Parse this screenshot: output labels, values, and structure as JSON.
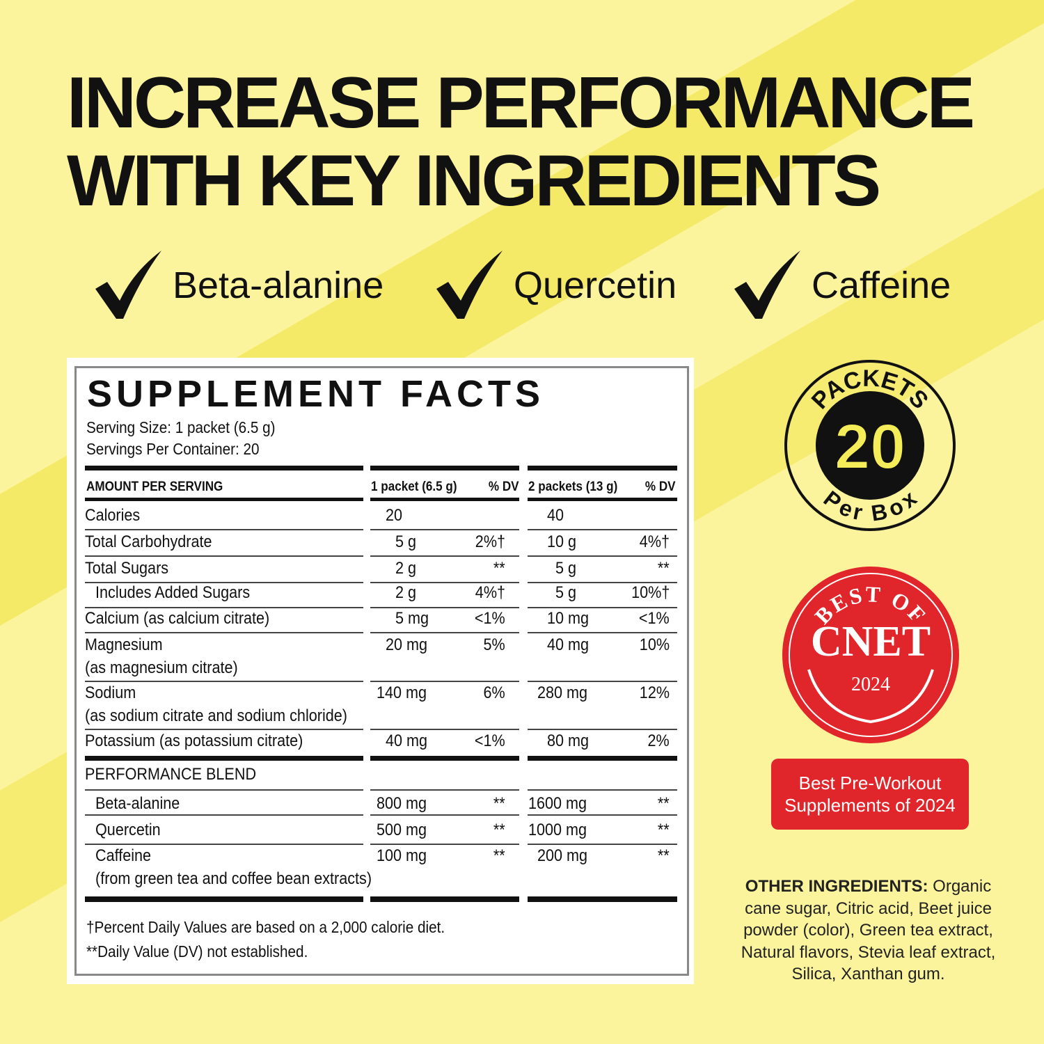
{
  "headline": {
    "line1": "INCREASE PERFORMANCE",
    "line2": "WITH KEY INGREDIENTS"
  },
  "highlights": [
    {
      "icon": "checkmark-icon",
      "label": "Beta-alanine"
    },
    {
      "icon": "checkmark-icon",
      "label": "Quercetin"
    },
    {
      "icon": "checkmark-icon",
      "label": "Caffeine"
    }
  ],
  "facts": {
    "title": "SUPPLEMENT FACTS",
    "serving_size": "Serving Size: 1 packet (6.5 g)",
    "servings_per_container": "Servings Per Container: 20",
    "headers": [
      "AMOUNT PER SERVING",
      "1 packet (6.5 g)",
      "% DV",
      "2 packets (13 g)",
      "% DV"
    ],
    "rows": [
      {
        "name": "Calories",
        "a1": "20",
        "d1": "",
        "a2": "40",
        "d2": ""
      },
      {
        "name": "Total Carbohydrate",
        "a1": "5 g",
        "d1": "2%†",
        "a2": "10 g",
        "d2": "4%†"
      },
      {
        "name": "Total Sugars",
        "a1": "2 g",
        "d1": "**",
        "a2": "5 g",
        "d2": "**"
      },
      {
        "name": "Includes Added Sugars",
        "a1": "2 g",
        "d1": "4%†",
        "a2": "5 g",
        "d2": "10%†"
      },
      {
        "name": "Calcium (as calcium citrate)",
        "a1": "5 mg",
        "d1": "<1%",
        "a2": "10 mg",
        "d2": "<1%"
      },
      {
        "name": "Magnesium",
        "note": "(as magnesium citrate)",
        "a1": "20 mg",
        "d1": "5%",
        "a2": "40 mg",
        "d2": "10%"
      },
      {
        "name": "Sodium",
        "note": "(as sodium citrate and sodium chloride)",
        "a1": "140 mg",
        "d1": "6%",
        "a2": "280 mg",
        "d2": "12%"
      },
      {
        "name": "Potassium (as potassium citrate)",
        "a1": "40 mg",
        "d1": "<1%",
        "a2": "80 mg",
        "d2": "2%"
      },
      {
        "name": "PERFORMANCE BLEND",
        "a1": "",
        "d1": "",
        "a2": "",
        "d2": ""
      },
      {
        "name": "Beta-alanine",
        "a1": "800 mg",
        "d1": "**",
        "a2": "1600 mg",
        "d2": "**"
      },
      {
        "name": "Quercetin",
        "a1": "500 mg",
        "d1": "**",
        "a2": "1000 mg",
        "d2": "**"
      },
      {
        "name": "Caffeine",
        "note": "(from green tea and coffee bean extracts)",
        "a1": "100 mg",
        "d1": "**",
        "a2": "200 mg",
        "d2": "**"
      }
    ],
    "footnote1": "†Percent Daily Values are based on a 2,000 calorie diet.",
    "footnote2": "**Daily Value (DV) not established."
  },
  "packets_badge": {
    "top": "PACKETS",
    "number": "20",
    "bottom": "Per Box"
  },
  "cnet_badge": {
    "top": "BEST OF",
    "brand": "CNET",
    "year": "2024",
    "color": "#e0262a"
  },
  "award_label": {
    "line1": "Best Pre-Workout",
    "line2": "Supplements of 2024"
  },
  "other_ingredients": {
    "label": "OTHER INGREDIENTS:",
    "text": " Organic cane sugar, Citric acid, Beet juice powder (color), Green tea extract, Natural flavors, Stevia leaf extract, Silica, Xanthan gum."
  }
}
